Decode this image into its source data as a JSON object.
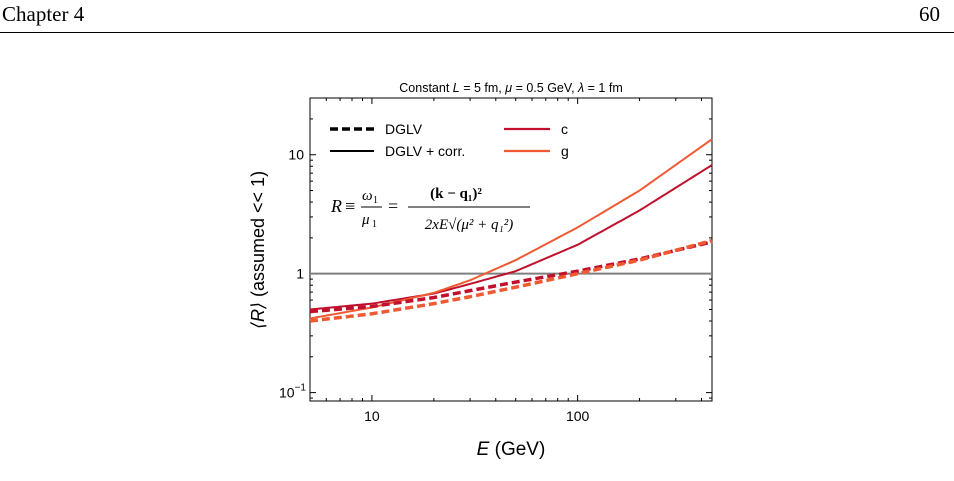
{
  "page": {
    "chapter": "Chapter 4",
    "page_number": "60"
  },
  "chart_data": {
    "type": "line",
    "title": "Constant L = 5 fm, μ = 0.5 GeV, λ = 1 fm",
    "title_parts": {
      "L": "L",
      "L_val": " = 5 fm, ",
      "mu": "μ",
      "mu_val": " = 0.5 GeV, ",
      "lambda": "λ",
      "lambda_val": " = 1 fm",
      "prefix": "Constant "
    },
    "xlabel": "E (GeV)",
    "xlabel_var": "E",
    "xlabel_unit": " (GeV)",
    "ylabel": "⟨R⟩ (assumed << 1)",
    "ylabel_var": "⟨R⟩",
    "ylabel_rest": " (assumed << 1)",
    "x_scale": "log",
    "y_scale": "log",
    "xlim": [
      5,
      450
    ],
    "ylim": [
      0.085,
      30
    ],
    "x_ticks": [
      {
        "value": 10,
        "label": "10"
      },
      {
        "value": 100,
        "label": "100"
      }
    ],
    "y_ticks": [
      {
        "value": 0.1,
        "label": "10",
        "exp": "−1"
      },
      {
        "value": 1,
        "label": "1",
        "exp": ""
      },
      {
        "value": 10,
        "label": "10",
        "exp": ""
      }
    ],
    "legend": {
      "style_entries": [
        {
          "label": "DGLV",
          "dash": "dashed"
        },
        {
          "label": "DGLV + corr.",
          "dash": "solid"
        }
      ],
      "color_entries": [
        {
          "label": "c",
          "color": "#c0102c"
        },
        {
          "label": "g",
          "color": "#f05a33"
        }
      ],
      "placement": "top-left"
    },
    "reference_line": {
      "y": 1,
      "color": "#7f7f7f"
    },
    "equation": {
      "lhs": "R ≡ ",
      "num1": "ω",
      "sub1": "1",
      "den1": "μ",
      "den1sub": "1",
      "eq": " = ",
      "num2": "(k − q₁)²",
      "den2": "2xE√(μ² + q₁²)"
    },
    "series": [
      {
        "name": "c",
        "style": "solid",
        "color": "#c0102c",
        "x": [
          5,
          10,
          20,
          30,
          50,
          100,
          200,
          450
        ],
        "y": [
          0.5,
          0.56,
          0.68,
          0.82,
          1.05,
          1.75,
          3.4,
          8.2
        ]
      },
      {
        "name": "g",
        "style": "solid",
        "color": "#f05a33",
        "x": [
          5,
          10,
          20,
          30,
          50,
          100,
          200,
          450
        ],
        "y": [
          0.42,
          0.52,
          0.69,
          0.88,
          1.3,
          2.45,
          5.0,
          13.5
        ]
      },
      {
        "name": "c",
        "style": "dashed",
        "color": "#c0102c",
        "x": [
          5,
          10,
          20,
          30,
          50,
          100,
          200,
          450
        ],
        "y": [
          0.48,
          0.53,
          0.63,
          0.72,
          0.85,
          1.05,
          1.33,
          1.85
        ]
      },
      {
        "name": "g",
        "style": "dashed",
        "color": "#f05a33",
        "x": [
          5,
          10,
          20,
          30,
          50,
          100,
          200,
          450
        ],
        "y": [
          0.4,
          0.46,
          0.56,
          0.64,
          0.77,
          1.0,
          1.3,
          1.9
        ]
      }
    ]
  }
}
